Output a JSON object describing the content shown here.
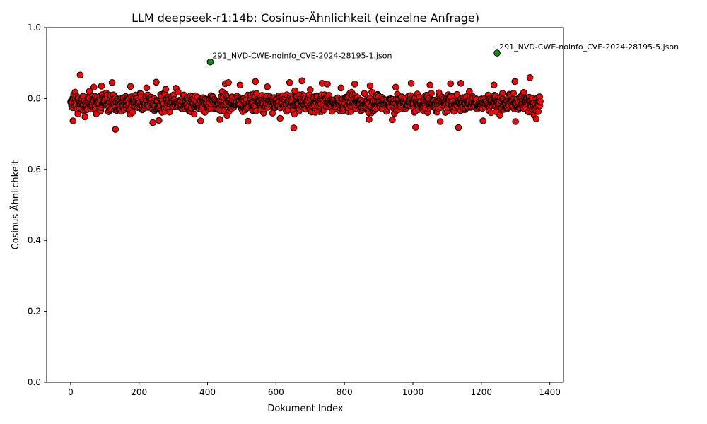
{
  "chart_data": {
    "type": "scatter",
    "title": "LLM deepseek-r1:14b: Cosinus-Ähnlichkeit (einzelne Anfrage)",
    "xlabel": "Dokument Index",
    "ylabel": "Cosinus-Ähnlichkeit",
    "xlim": [
      -70,
      1440
    ],
    "ylim": [
      0.0,
      1.0
    ],
    "x_ticks": [
      0,
      200,
      400,
      600,
      800,
      1000,
      1200,
      1400
    ],
    "y_ticks": [
      0.0,
      0.2,
      0.4,
      0.6,
      0.8,
      1.0
    ],
    "x_tick_labels": [
      "0",
      "200",
      "400",
      "600",
      "800",
      "1000",
      "1200",
      "1400"
    ],
    "y_tick_labels": [
      "0.0",
      "0.2",
      "0.4",
      "0.6",
      "0.8",
      "1.0"
    ],
    "grid": false,
    "legend": "none",
    "n_points": 1373,
    "typical_range": [
      0.73,
      0.85
    ],
    "base_color": "#ff0000",
    "highlight_color": "#1a8a1a",
    "series": [
      {
        "values": [
          {
            "x": 0,
            "y": 0.79
          },
          {
            "x": 7,
            "y": 0.737
          },
          {
            "x": 13,
            "y": 0.818
          },
          {
            "x": 28,
            "y": 0.866
          },
          {
            "x": 42,
            "y": 0.748
          },
          {
            "x": 68,
            "y": 0.832
          },
          {
            "x": 90,
            "y": 0.835
          },
          {
            "x": 121,
            "y": 0.845
          },
          {
            "x": 131,
            "y": 0.713
          },
          {
            "x": 175,
            "y": 0.834
          },
          {
            "x": 222,
            "y": 0.83
          },
          {
            "x": 240,
            "y": 0.732
          },
          {
            "x": 250,
            "y": 0.846
          },
          {
            "x": 258,
            "y": 0.738
          },
          {
            "x": 278,
            "y": 0.826
          },
          {
            "x": 308,
            "y": 0.829
          },
          {
            "x": 380,
            "y": 0.737
          },
          {
            "x": 436,
            "y": 0.741
          },
          {
            "x": 452,
            "y": 0.842
          },
          {
            "x": 461,
            "y": 0.845
          },
          {
            "x": 495,
            "y": 0.838
          },
          {
            "x": 518,
            "y": 0.736
          },
          {
            "x": 540,
            "y": 0.848
          },
          {
            "x": 575,
            "y": 0.833
          },
          {
            "x": 612,
            "y": 0.744
          },
          {
            "x": 640,
            "y": 0.845
          },
          {
            "x": 652,
            "y": 0.717
          },
          {
            "x": 676,
            "y": 0.85
          },
          {
            "x": 700,
            "y": 0.825
          },
          {
            "x": 735,
            "y": 0.843
          },
          {
            "x": 750,
            "y": 0.841
          },
          {
            "x": 790,
            "y": 0.83
          },
          {
            "x": 830,
            "y": 0.841
          },
          {
            "x": 875,
            "y": 0.836
          },
          {
            "x": 872,
            "y": 0.741
          },
          {
            "x": 940,
            "y": 0.74
          },
          {
            "x": 950,
            "y": 0.832
          },
          {
            "x": 995,
            "y": 0.843
          },
          {
            "x": 1008,
            "y": 0.719
          },
          {
            "x": 1050,
            "y": 0.838
          },
          {
            "x": 1080,
            "y": 0.735
          },
          {
            "x": 1110,
            "y": 0.842
          },
          {
            "x": 1133,
            "y": 0.718
          },
          {
            "x": 1140,
            "y": 0.843
          },
          {
            "x": 1165,
            "y": 0.82
          },
          {
            "x": 1205,
            "y": 0.737
          },
          {
            "x": 1237,
            "y": 0.838
          },
          {
            "x": 1298,
            "y": 0.848
          },
          {
            "x": 1300,
            "y": 0.735
          },
          {
            "x": 1342,
            "y": 0.859
          },
          {
            "x": 1360,
            "y": 0.743
          },
          {
            "x": 1370,
            "y": 0.805
          }
        ]
      }
    ],
    "highlighted": [
      {
        "x": 408,
        "y": 0.903,
        "label": "291_NVD-CWE-noinfo_CVE-2024-28195-1.json"
      },
      {
        "x": 1246,
        "y": 0.928,
        "label": "291_NVD-CWE-noinfo_CVE-2024-28195-5.json"
      }
    ]
  }
}
